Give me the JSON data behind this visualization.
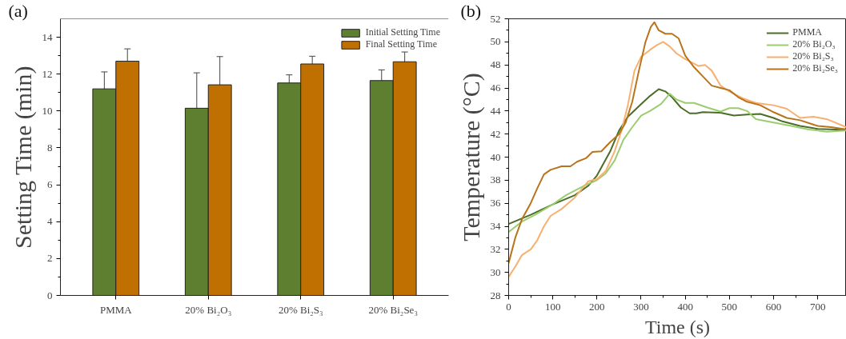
{
  "chart_data": [
    {
      "type": "bar",
      "ylabel": "Setting Time (min)",
      "annotations": [
        "(a)"
      ],
      "categories": [
        "PMMA",
        "20% Bi₂O₃",
        "20% Bi₂S₃",
        "20% Bi₂Se₃"
      ],
      "series": [
        {
          "name": "Initial Setting Time",
          "color": "#5f7f30",
          "values": [
            11.2,
            10.15,
            11.52,
            11.65
          ],
          "errors": [
            0.92,
            1.92,
            0.44,
            0.58
          ]
        },
        {
          "name": "Final Setting Time",
          "color": "#c07000",
          "values": [
            12.7,
            11.42,
            12.55,
            12.67
          ],
          "errors": [
            0.67,
            1.53,
            0.42,
            0.53
          ]
        }
      ],
      "ylim": [
        0,
        15
      ],
      "yticks": [
        0,
        2,
        4,
        6,
        8,
        10,
        12,
        14
      ],
      "legend": "top right"
    },
    {
      "type": "line",
      "xlabel": "Time (s)",
      "ylabel": "Temperature (°C)",
      "annotations": [
        "(b)"
      ],
      "series": [
        {
          "name": "PMMA",
          "color": "#4a6e28",
          "x": [
            0,
            50,
            100,
            150,
            180,
            200,
            230,
            250,
            270,
            300,
            320,
            340,
            355,
            370,
            390,
            410,
            425,
            440,
            480,
            510,
            540,
            570,
            600,
            620,
            660,
            700,
            740,
            765
          ],
          "values": [
            34.2,
            35.0,
            35.9,
            36.7,
            37.5,
            38.4,
            40.5,
            42.3,
            43.5,
            44.6,
            45.3,
            45.9,
            45.7,
            45.2,
            44.3,
            43.8,
            43.8,
            43.9,
            43.85,
            43.6,
            43.7,
            43.75,
            43.4,
            43.1,
            42.7,
            42.45,
            42.4,
            42.35
          ]
        },
        {
          "name": "20% Bi₂O₃",
          "color": "#9ccc70",
          "x": [
            0,
            30,
            60,
            100,
            130,
            170,
            200,
            220,
            240,
            260,
            280,
            300,
            320,
            345,
            365,
            380,
            400,
            420,
            450,
            480,
            500,
            520,
            540,
            560,
            600,
            640,
            680,
            720,
            765
          ],
          "values": [
            33.5,
            34.4,
            35.0,
            35.9,
            36.7,
            37.5,
            38.0,
            38.6,
            39.7,
            41.5,
            42.6,
            43.6,
            44.0,
            44.6,
            45.5,
            45.0,
            44.7,
            44.7,
            44.3,
            43.95,
            44.25,
            44.25,
            44.0,
            43.3,
            43.0,
            42.7,
            42.4,
            42.2,
            42.3
          ]
        },
        {
          "name": "20% Bi₂S₃",
          "color": "#f8b070",
          "x": [
            0,
            15,
            30,
            50,
            65,
            80,
            95,
            120,
            150,
            180,
            200,
            220,
            240,
            255,
            270,
            285,
            300,
            320,
            335,
            350,
            365,
            380,
            400,
            420,
            430,
            445,
            460,
            480,
            500,
            530,
            560,
            600,
            630,
            660,
            690,
            720,
            765
          ],
          "values": [
            29.6,
            30.5,
            31.5,
            32.0,
            32.8,
            34.0,
            34.9,
            35.5,
            36.5,
            37.9,
            38.1,
            38.8,
            40.5,
            42.2,
            44.5,
            47.5,
            48.7,
            49.3,
            49.7,
            50.0,
            49.6,
            49.0,
            48.5,
            48.1,
            47.9,
            48.0,
            47.5,
            46.2,
            45.7,
            45.1,
            44.7,
            44.5,
            44.2,
            43.4,
            43.5,
            43.3,
            42.6
          ]
        },
        {
          "name": "20% Bi₂Se₃",
          "color": "#b8741c",
          "x": [
            0,
            15,
            30,
            50,
            65,
            80,
            95,
            120,
            140,
            155,
            175,
            190,
            210,
            230,
            250,
            265,
            280,
            295,
            310,
            322,
            330,
            340,
            355,
            370,
            385,
            400,
            420,
            440,
            460,
            480,
            500,
            520,
            540,
            570,
            600,
            630,
            660,
            700,
            730,
            765
          ],
          "values": [
            30.8,
            33.0,
            34.6,
            36.0,
            37.3,
            38.5,
            38.9,
            39.2,
            39.2,
            39.6,
            39.9,
            40.45,
            40.5,
            41.3,
            42.0,
            43.0,
            44.8,
            47.5,
            50.0,
            51.3,
            51.7,
            51.0,
            50.7,
            50.7,
            50.3,
            48.8,
            47.8,
            47.0,
            46.2,
            46.0,
            45.8,
            45.2,
            44.8,
            44.5,
            43.9,
            43.4,
            43.2,
            42.7,
            42.6,
            42.4
          ]
        }
      ],
      "xlim": [
        0,
        765
      ],
      "xticks": [
        0,
        100,
        200,
        300,
        400,
        500,
        600,
        700
      ],
      "ylim": [
        28,
        52
      ],
      "yticks": [
        28,
        30,
        32,
        34,
        36,
        38,
        40,
        42,
        44,
        46,
        48,
        50,
        52
      ],
      "legend": "top right"
    }
  ]
}
